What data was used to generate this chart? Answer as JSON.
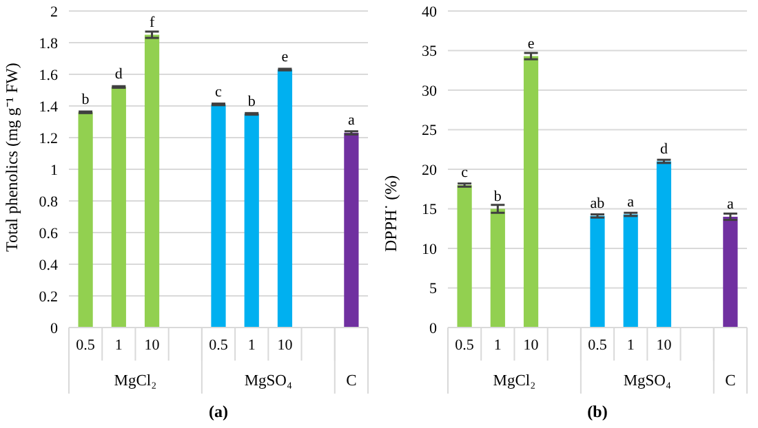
{
  "chart_data": [
    {
      "type": "bar",
      "ylabel": "Total phenolics (mg g⁻¹ FW)",
      "categories": [
        "0.5",
        "1",
        "10",
        null,
        "0.5",
        "1",
        "10",
        null,
        null
      ],
      "values": [
        1.36,
        1.52,
        1.85,
        null,
        1.41,
        1.35,
        1.63,
        null,
        1.23
      ],
      "colors": [
        "#92d050",
        "#92d050",
        "#92d050",
        "#92d050",
        "#00b0f0",
        "#00b0f0",
        "#00b0f0",
        "#00b0f0",
        "#7030a0"
      ],
      "errors": [
        0.005,
        0.005,
        0.02,
        null,
        0.005,
        0.005,
        0.005,
        null,
        0.01
      ],
      "value_labels": [
        "b",
        "d",
        "f",
        null,
        "c",
        "b",
        "e",
        null,
        "a"
      ],
      "ylim": [
        0,
        2
      ],
      "yticks": [
        0,
        0.2,
        0.4,
        0.6,
        0.8,
        1,
        1.2,
        1.4,
        1.6,
        1.8,
        2
      ],
      "grid": "y",
      "legend": false,
      "annotations": [
        "MgCl₂",
        "MgSO₄",
        "C",
        "(a)"
      ]
    },
    {
      "type": "bar",
      "ylabel": "DPPH˙ (%)",
      "categories": [
        "0.5",
        "1",
        "10",
        null,
        "0.5",
        "1",
        "10",
        null,
        null
      ],
      "values": [
        18,
        15,
        34.3,
        null,
        14.1,
        14.3,
        21,
        null,
        14
      ],
      "colors": [
        "#92d050",
        "#92d050",
        "#92d050",
        "#92d050",
        "#00b0f0",
        "#00b0f0",
        "#00b0f0",
        "#00b0f0",
        "#7030a0"
      ],
      "errors": [
        0.2,
        0.5,
        0.4,
        null,
        0.2,
        0.2,
        0.2,
        null,
        0.4
      ],
      "value_labels": [
        "c",
        "b",
        "e",
        null,
        "ab",
        "a",
        "d",
        null,
        "a"
      ],
      "ylim": [
        0,
        40
      ],
      "yticks": [
        0,
        5,
        10,
        15,
        20,
        25,
        30,
        35,
        40
      ],
      "grid": "y",
      "legend": false,
      "annotations": [
        "MgCl₂",
        "MgSO₄",
        "C",
        "(b)"
      ]
    }
  ]
}
